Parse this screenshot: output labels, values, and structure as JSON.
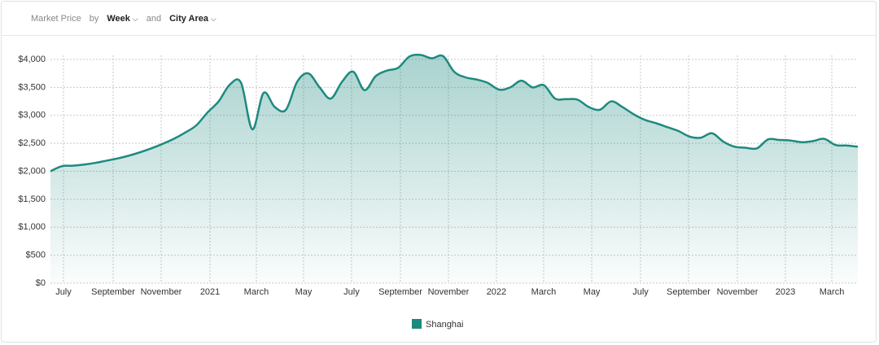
{
  "header": {
    "label": "Market Price",
    "by": "by",
    "period": "Week",
    "and": "and",
    "area": "City Area"
  },
  "chart_data": {
    "type": "area",
    "series": [
      {
        "name": "Shanghai",
        "color": "#1d8a7f",
        "values": [
          2000,
          2090,
          2100,
          2120,
          2150,
          2190,
          2230,
          2280,
          2340,
          2410,
          2490,
          2580,
          2690,
          2820,
          3050,
          3250,
          3550,
          3580,
          2750,
          3400,
          3150,
          3100,
          3600,
          3750,
          3500,
          3300,
          3600,
          3780,
          3450,
          3700,
          3800,
          3850,
          4050,
          4080,
          4020,
          4060,
          3780,
          3680,
          3640,
          3580,
          3460,
          3500,
          3620,
          3500,
          3540,
          3300,
          3290,
          3280,
          3150,
          3100,
          3250,
          3150,
          3020,
          2920,
          2860,
          2790,
          2720,
          2620,
          2600,
          2680,
          2530,
          2440,
          2420,
          2410,
          2570,
          2560,
          2550,
          2520,
          2540,
          2580,
          2470,
          2460,
          2440
        ]
      }
    ],
    "xlim": [
      0,
      72
    ],
    "xticks": [
      {
        "value": 1.16,
        "label": "July"
      },
      {
        "value": 5.59,
        "label": "September"
      },
      {
        "value": 9.87,
        "label": "November"
      },
      {
        "value": 14.23,
        "label": "2021"
      },
      {
        "value": 18.36,
        "label": "March"
      },
      {
        "value": 22.57,
        "label": "May"
      },
      {
        "value": 26.85,
        "label": "July"
      },
      {
        "value": 31.21,
        "label": "September"
      },
      {
        "value": 35.49,
        "label": "November"
      },
      {
        "value": 39.77,
        "label": "2022"
      },
      {
        "value": 43.98,
        "label": "March"
      },
      {
        "value": 48.27,
        "label": "May"
      },
      {
        "value": 52.62,
        "label": "July"
      },
      {
        "value": 56.9,
        "label": "September"
      },
      {
        "value": 61.26,
        "label": "November"
      },
      {
        "value": 65.54,
        "label": "2023"
      },
      {
        "value": 69.68,
        "label": "March"
      }
    ],
    "ylim": [
      0,
      4000
    ],
    "yticks": [
      {
        "value": 0,
        "label": "$0"
      },
      {
        "value": 500,
        "label": "$500"
      },
      {
        "value": 1000,
        "label": "$1,000"
      },
      {
        "value": 1500,
        "label": "$1,500"
      },
      {
        "value": 2000,
        "label": "$2,000"
      },
      {
        "value": 2500,
        "label": "$2,500"
      },
      {
        "value": 3000,
        "label": "$3,000"
      },
      {
        "value": 3500,
        "label": "$3,500"
      },
      {
        "value": 4000,
        "label": "$4,000"
      }
    ],
    "grid": true
  }
}
